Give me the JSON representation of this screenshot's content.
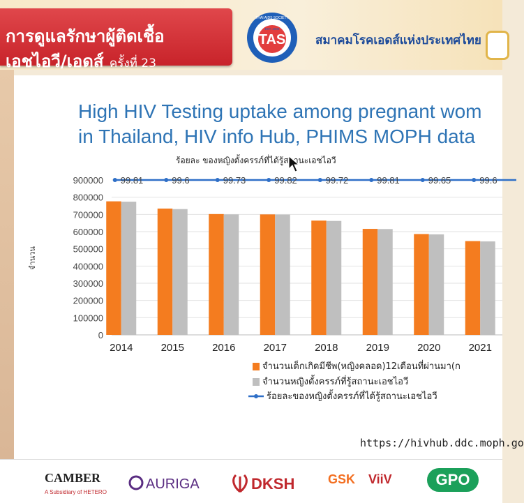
{
  "header": {
    "conference_line1": "การดูแลรักษาผู้ติดเชื้อ",
    "conference_line2": "เอชไอวี/เอดส์",
    "conference_edition": "ครั้งที่ 23",
    "logo_text": "TAS",
    "logo_top_text": "THAI AIDS SOCIETY",
    "logo_est": "EST. 2003",
    "society_name": "สมาคมโรคเอดส์แห่งประเทศไทย"
  },
  "slide": {
    "title_line1": "High HIV Testing uptake among pregnant wom",
    "title_line2": "in Thailand, HIV info Hub, PHIMS MOPH data",
    "source_url": "https://hivhub.ddc.moph.go"
  },
  "chart_data": {
    "type": "bar",
    "categories": [
      "2014",
      "2015",
      "2016",
      "2017",
      "2018",
      "2019",
      "2020",
      "2021"
    ],
    "series": [
      {
        "name": "จำนวนเด็กเกิดมีชีพ(หญิงคลอด)12เดือนที่ผ่านมา(ก",
        "values": [
          776000,
          734000,
          702000,
          700000,
          664000,
          616000,
          586000,
          545000
        ],
        "color": "#f47c1f"
      },
      {
        "name": "จำนวนหญิงตั้งครรภ์ที่รู้สถานะเอชไอวี",
        "values": [
          774000,
          731000,
          700000,
          699000,
          662000,
          615000,
          584000,
          543000
        ],
        "color": "#bfbfbf"
      }
    ],
    "line_series": {
      "name": "ร้อยละของหญิงตั้งครรภ์ที่ได้รู้สถานะเอชไอวี",
      "values": [
        99.81,
        99.6,
        99.73,
        99.82,
        99.72,
        99.81,
        99.65,
        99.6
      ],
      "labels": [
        "99.81",
        "99.6",
        "99.73",
        "99.82",
        "99.72",
        "99.81",
        "99.65",
        "99.6"
      ],
      "color": "#2e6fc7"
    },
    "line_title": "ร้อยละ ของหญิงตั้งครรภ์ที่ได้รู้สถานะเอชไอวี",
    "ylabel": "จำนวน",
    "ylim": [
      0,
      900000
    ],
    "yticks": [
      "0",
      "100000",
      "200000",
      "300000",
      "400000",
      "500000",
      "600000",
      "700000",
      "800000",
      "900000"
    ],
    "legend_position": "bottom"
  },
  "sponsors": [
    "CAMBER",
    "A Subsidiary of HETERO",
    "AURIGA",
    "DKSH",
    "GSK",
    "ViiV",
    "GPO"
  ]
}
